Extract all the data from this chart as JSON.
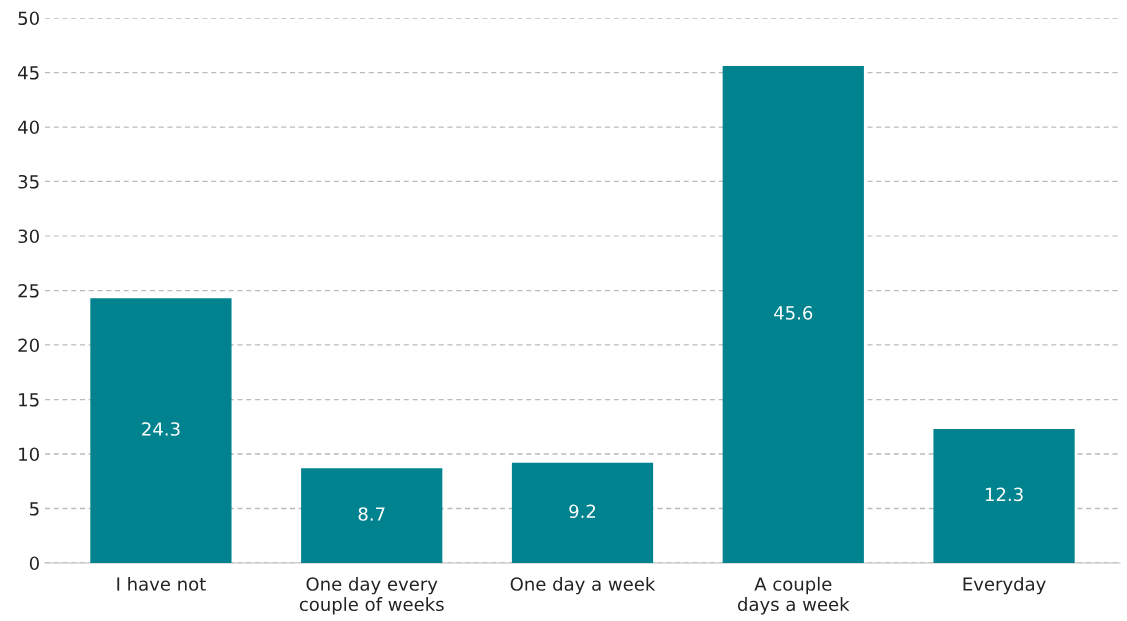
{
  "chart_data": {
    "type": "bar",
    "categories": [
      "I have not",
      "One day every\ncouple of weeks",
      "One day a week",
      "A couple\ndays a week",
      "Everyday"
    ],
    "values": [
      24.3,
      8.7,
      9.2,
      45.6,
      12.3
    ],
    "color": "#00838f",
    "ylim": [
      0,
      50
    ],
    "yticks": [
      0,
      5,
      10,
      15,
      20,
      25,
      30,
      35,
      40,
      45,
      50
    ],
    "grid": "y",
    "data_labels": true
  }
}
